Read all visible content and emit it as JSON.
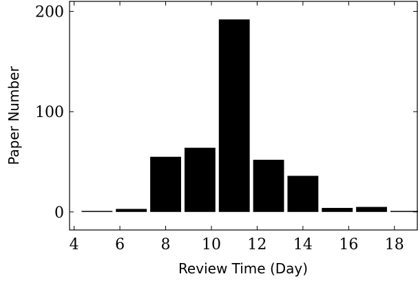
{
  "chart_data": {
    "type": "bar",
    "xlabel": "Review Time (Day)",
    "ylabel": "Paper Number",
    "xlim": [
      3.8,
      19.0
    ],
    "ylim": [
      -18,
      210
    ],
    "xticks": [
      4,
      6,
      8,
      10,
      12,
      14,
      16,
      18
    ],
    "yticks": [
      0,
      100,
      200
    ],
    "bin_width": 1.5,
    "bars": [
      {
        "center": 5.0,
        "value": 1
      },
      {
        "center": 6.5,
        "value": 3
      },
      {
        "center": 8.0,
        "value": 55
      },
      {
        "center": 9.5,
        "value": 64
      },
      {
        "center": 11.0,
        "value": 192
      },
      {
        "center": 12.5,
        "value": 52
      },
      {
        "center": 14.0,
        "value": 36
      },
      {
        "center": 15.5,
        "value": 4
      },
      {
        "center": 17.0,
        "value": 5
      },
      {
        "center": 18.5,
        "value": 1
      }
    ],
    "bar_color": "#000000",
    "grid": false,
    "legend": "none"
  }
}
